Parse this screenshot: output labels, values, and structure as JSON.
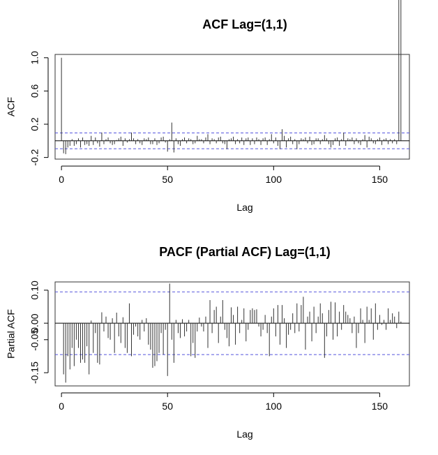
{
  "chart_data": [
    {
      "type": "bar",
      "title": "ACF Lag=(1,1)",
      "xlabel": "Lag",
      "ylabel": "ACF",
      "xlim": [
        -3,
        164
      ],
      "ylim": [
        -0.22,
        1.04
      ],
      "x_ticks": [
        0,
        50,
        100,
        150
      ],
      "x_tick_labels": [
        "0",
        "50",
        "100",
        "150"
      ],
      "y_ticks": [
        -0.2,
        0.2,
        0.6,
        1.0
      ],
      "y_tick_labels": [
        "-0.2",
        "0.2",
        "0.6",
        "1.0"
      ],
      "confidence_bounds": [
        0.095,
        -0.095
      ],
      "bounds_color": "#5555dd",
      "bar_color": "#333333",
      "lags": [
        0,
        1,
        2,
        3,
        4,
        5,
        6,
        7,
        8,
        9,
        10,
        11,
        12,
        13,
        14,
        15,
        16,
        17,
        18,
        19,
        20,
        21,
        22,
        23,
        24,
        25,
        26,
        27,
        28,
        29,
        30,
        31,
        32,
        33,
        34,
        35,
        36,
        37,
        38,
        39,
        40,
        41,
        42,
        43,
        44,
        45,
        46,
        47,
        48,
        49,
        50,
        51,
        52,
        53,
        54,
        55,
        56,
        57,
        58,
        59,
        60,
        61,
        62,
        63,
        64,
        65,
        66,
        67,
        68,
        69,
        70,
        71,
        72,
        73,
        74,
        75,
        76,
        77,
        78,
        79,
        80,
        81,
        82,
        83,
        84,
        85,
        86,
        87,
        88,
        89,
        90,
        91,
        92,
        93,
        94,
        95,
        96,
        97,
        98,
        99,
        100,
        101,
        102,
        103,
        104,
        105,
        106,
        107,
        108,
        109,
        110,
        111,
        112,
        113,
        114,
        115,
        116,
        117,
        118,
        119,
        120,
        121,
        122,
        123,
        124,
        125,
        126,
        127,
        128,
        129,
        130,
        131,
        132,
        133,
        134,
        135,
        136,
        137,
        138,
        139,
        140,
        141,
        142,
        143,
        144,
        145,
        146,
        147,
        148,
        149,
        150,
        151,
        152,
        153,
        154,
        155,
        156,
        157,
        158,
        159,
        160
      ],
      "values": [
        1.0,
        -0.15,
        -0.16,
        -0.08,
        -0.06,
        0.02,
        -0.06,
        -0.04,
        0.03,
        -0.08,
        0.04,
        -0.05,
        -0.04,
        -0.06,
        0.06,
        -0.05,
        0.04,
        -0.03,
        -0.07,
        0.1,
        -0.04,
        0.02,
        0.04,
        -0.03,
        -0.05,
        -0.04,
        0.01,
        0.03,
        0.05,
        -0.06,
        0.03,
        -0.02,
        0.02,
        0.1,
        0.03,
        -0.04,
        0.02,
        -0.03,
        -0.05,
        0.03,
        0.02,
        0.04,
        -0.04,
        -0.04,
        0.03,
        -0.05,
        -0.03,
        0.04,
        0.05,
        -0.02,
        -0.13,
        0.02,
        0.22,
        -0.14,
        0.03,
        -0.04,
        -0.06,
        0.02,
        0.04,
        -0.03,
        0.03,
        0.02,
        -0.04,
        -0.03,
        0.06,
        0.02,
        0.02,
        -0.03,
        0.04,
        0.08,
        -0.04,
        0.03,
        0.02,
        -0.03,
        0.04,
        0.05,
        -0.03,
        -0.04,
        -0.1,
        0.02,
        0.03,
        0.05,
        -0.04,
        0.02,
        -0.03,
        0.04,
        -0.05,
        0.03,
        0.04,
        -0.05,
        0.03,
        -0.04,
        0.04,
        0.02,
        -0.05,
        0.03,
        0.04,
        -0.05,
        0.02,
        0.08,
        -0.03,
        0.04,
        -0.06,
        -0.1,
        0.14,
        0.06,
        -0.08,
        0.03,
        0.05,
        -0.04,
        0.02,
        -0.1,
        -0.04,
        0.03,
        0.02,
        0.04,
        -0.03,
        0.05,
        -0.05,
        -0.04,
        0.03,
        0.03,
        -0.04,
        0.02,
        0.07,
        0.03,
        -0.04,
        -0.08,
        -0.05,
        0.03,
        0.04,
        -0.06,
        0.02,
        0.1,
        -0.06,
        0.03,
        0.02,
        0.04,
        -0.04,
        0.03,
        -0.03,
        -0.05,
        0.02,
        0.07,
        -0.08,
        0.05,
        0.03,
        -0.03,
        -0.04,
        0.02,
        0.04,
        -0.05,
        0.02,
        0.03,
        -0.04,
        0.02,
        -0.03,
        0.02,
        -0.04
      ]
    },
    {
      "type": "bar",
      "title": "PACF (Partial ACF) Lag=(1,1)",
      "xlabel": "Lag",
      "ylabel": "Partial ACF",
      "xlim": [
        -3,
        164
      ],
      "ylim": [
        -0.19,
        0.125
      ],
      "x_ticks": [
        0,
        50,
        100,
        150
      ],
      "x_tick_labels": [
        "0",
        "50",
        "100",
        "150"
      ],
      "y_ticks": [
        -0.15,
        -0.05,
        0.0,
        0.1
      ],
      "y_tick_labels": [
        "-0.15",
        "-0.05",
        "0.00",
        "0.10"
      ],
      "confidence_bounds": [
        0.095,
        -0.095
      ],
      "bounds_color": "#5555dd",
      "bar_color": "#333333",
      "lags": [
        1,
        2,
        3,
        4,
        5,
        6,
        7,
        8,
        9,
        10,
        11,
        12,
        13,
        14,
        15,
        16,
        17,
        18,
        19,
        20,
        21,
        22,
        23,
        24,
        25,
        26,
        27,
        28,
        29,
        30,
        31,
        32,
        33,
        34,
        35,
        36,
        37,
        38,
        39,
        40,
        41,
        42,
        43,
        44,
        45,
        46,
        47,
        48,
        49,
        50,
        51,
        52,
        53,
        54,
        55,
        56,
        57,
        58,
        59,
        60,
        61,
        62,
        63,
        64,
        65,
        66,
        67,
        68,
        69,
        70,
        71,
        72,
        73,
        74,
        75,
        76,
        77,
        78,
        79,
        80,
        81,
        82,
        83,
        84,
        85,
        86,
        87,
        88,
        89,
        90,
        91,
        92,
        93,
        94,
        95,
        96,
        97,
        98,
        99,
        100,
        101,
        102,
        103,
        104,
        105,
        106,
        107,
        108,
        109,
        110,
        111,
        112,
        113,
        114,
        115,
        116,
        117,
        118,
        119,
        120,
        121,
        122,
        123,
        124,
        125,
        126,
        127,
        128,
        129,
        130,
        131,
        132,
        133,
        134,
        135,
        136,
        137,
        138,
        139,
        140,
        141,
        142,
        143,
        144,
        145,
        146,
        147,
        148,
        149,
        150,
        151,
        152,
        153,
        154,
        155,
        156,
        157,
        158,
        159,
        160
      ],
      "values": [
        -0.155,
        -0.18,
        -0.1,
        -0.14,
        -0.075,
        -0.13,
        -0.05,
        -0.075,
        -0.12,
        -0.11,
        -0.12,
        -0.07,
        -0.155,
        0.008,
        -0.09,
        -0.03,
        -0.12,
        -0.125,
        0.033,
        -0.025,
        0.02,
        -0.045,
        -0.05,
        0.015,
        -0.09,
        0.032,
        -0.04,
        -0.06,
        0.018,
        -0.075,
        -0.09,
        0.06,
        -0.1,
        -0.035,
        -0.01,
        -0.04,
        -0.05,
        0.01,
        -0.025,
        0.015,
        -0.065,
        -0.08,
        -0.135,
        -0.13,
        -0.115,
        -0.09,
        -0.03,
        -0.095,
        -0.02,
        -0.16,
        0.12,
        -0.05,
        -0.12,
        0.01,
        -0.03,
        -0.045,
        0.012,
        -0.04,
        -0.025,
        0.01,
        -0.1,
        -0.06,
        -0.105,
        -0.025,
        0.017,
        -0.01,
        -0.025,
        0.02,
        -0.075,
        0.07,
        -0.03,
        0.04,
        0.05,
        -0.06,
        0.02,
        0.07,
        -0.02,
        -0.045,
        -0.07,
        0.048,
        0.025,
        -0.065,
        0.05,
        -0.03,
        0.01,
        0.045,
        -0.055,
        -0.02,
        0.04,
        0.045,
        0.04,
        0.042,
        -0.01,
        -0.04,
        -0.02,
        0.025,
        -0.03,
        -0.1,
        0.02,
        0.045,
        -0.04,
        0.055,
        -0.065,
        0.055,
        0.015,
        -0.075,
        -0.035,
        -0.02,
        0.03,
        -0.03,
        0.06,
        -0.025,
        0.055,
        0.08,
        -0.08,
        0.02,
        0.035,
        -0.055,
        0.05,
        -0.03,
        0.02,
        0.06,
        0.03,
        -0.105,
        -0.04,
        0.04,
        0.065,
        -0.05,
        0.063,
        -0.04,
        0.035,
        -0.02,
        0.055,
        0.035,
        0.025,
        0.015,
        -0.03,
        0.02,
        -0.075,
        -0.03,
        0.045,
        0.01,
        -0.06,
        0.05,
        0.01,
        0.045,
        -0.05,
        0.06,
        -0.02,
        0.025,
        -0.005,
        0.01,
        -0.02,
        0.045,
        0.01,
        0.03,
        0.02,
        -0.015,
        0.035,
        0.005
      ]
    }
  ]
}
